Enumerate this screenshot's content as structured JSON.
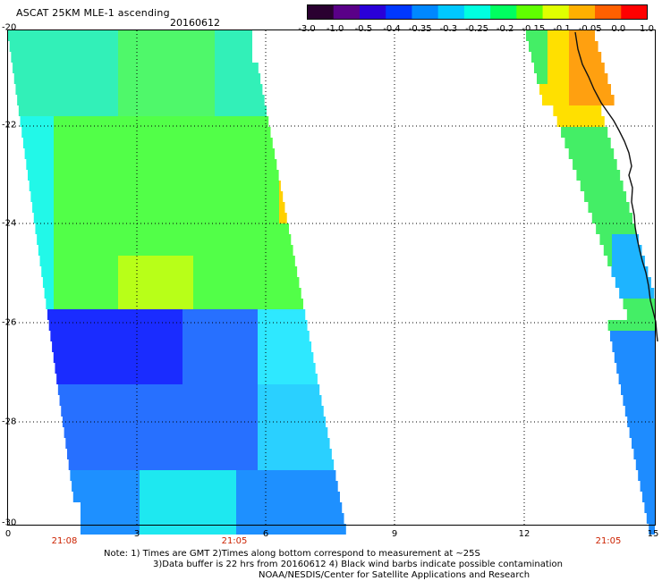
{
  "header": {
    "title": "ASCAT 25KM MLE-1 ascending",
    "date": "20160612"
  },
  "colorbar": {
    "ticks": [
      "-3.0",
      "-1.0",
      "-0.5",
      "-0.4",
      "-0.35",
      "-0.3",
      "-0.25",
      "-0.2",
      "-0.15",
      "-0.1",
      "-0.05",
      "0.0",
      "1.0"
    ],
    "colors": [
      "#2a0030",
      "#5a0088",
      "#2a00d8",
      "#0038ff",
      "#0088ff",
      "#00c8ff",
      "#00ffe0",
      "#00ff60",
      "#60ff00",
      "#e0ff00",
      "#ffb000",
      "#ff6000",
      "#ff0000"
    ]
  },
  "axes": {
    "x_ticks": [
      "0",
      "3",
      "6",
      "9",
      "12",
      "15"
    ],
    "y_ticks": [
      "-20",
      "-22",
      "-24",
      "-26",
      "-28",
      "-30"
    ],
    "time_labels": [
      "21:08",
      "21:05",
      "21:05"
    ]
  },
  "notes": {
    "line1": "Note: 1) Times are GMT 2)Times along bottom correspond to measurement at ~25S",
    "line2": "3)Data buffer is 22 hrs from 20160612 4) Black wind barbs indicate possible contamination",
    "line3": "NOAA/NESDIS/Center for Satellite Applications and Research"
  },
  "map_data": {
    "x_range": [
      0,
      15
    ],
    "y_range": [
      -30,
      -20
    ],
    "swaths": [
      "west swath",
      "east swath"
    ],
    "coastline": "black coastline along east swath"
  }
}
